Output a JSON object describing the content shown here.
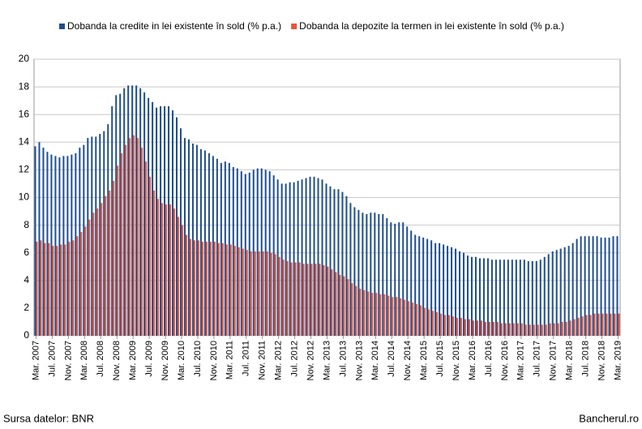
{
  "chart_data": {
    "type": "bar",
    "categories": [
      "Mar. 2007",
      null,
      null,
      null,
      "Jul. 2007",
      null,
      null,
      null,
      "Nov. 2007",
      null,
      null,
      null,
      "Mar. 2008",
      null,
      null,
      null,
      "Jul. 2008",
      null,
      null,
      null,
      "Nov. 2008",
      null,
      null,
      null,
      "Mar. 2009",
      null,
      null,
      null,
      "Jul. 2009",
      null,
      null,
      null,
      "Nov. 2009",
      null,
      null,
      null,
      "Mar. 2010",
      null,
      null,
      null,
      "Jul. 2010",
      null,
      null,
      null,
      "Nov. 2010",
      null,
      null,
      null,
      "Mar. 2011",
      null,
      null,
      null,
      "Jul. 2011",
      null,
      null,
      null,
      "Nov. 2011",
      null,
      null,
      null,
      "Mar. 2012",
      null,
      null,
      null,
      "Jul. 2012",
      null,
      null,
      null,
      "Nov. 2012",
      null,
      null,
      null,
      "Mar. 2013",
      null,
      null,
      null,
      "Jul. 2013",
      null,
      null,
      null,
      "Nov. 2013",
      null,
      null,
      null,
      "Mar. 2014",
      null,
      null,
      null,
      "Jul. 2014",
      null,
      null,
      null,
      "Nov. 2014",
      null,
      null,
      null,
      "Mar. 2015",
      null,
      null,
      null,
      "Jul. 2015",
      null,
      null,
      null,
      "Nov. 2015",
      null,
      null,
      null,
      "Mar. 2016",
      null,
      null,
      null,
      "Jul. 2016",
      null,
      null,
      null,
      "Nov. 2016",
      null,
      null,
      null,
      "Mar. 2017",
      null,
      null,
      null,
      "Jul. 2017",
      null,
      null,
      null,
      "Nov. 2017",
      null,
      null,
      null,
      "Mar. 2018",
      null,
      null,
      null,
      "Jul. 2018",
      null,
      null,
      null,
      "Nov. 2018",
      null,
      null,
      null,
      "Mar. 2019"
    ],
    "series": [
      {
        "name": "Dobanda la credite in lei existente în sold (% p.a.)",
        "color": "#1f4e8c",
        "values": [
          13.7,
          14.0,
          13.6,
          13.3,
          13.1,
          13.0,
          12.9,
          13.0,
          13.0,
          13.1,
          13.2,
          13.6,
          13.8,
          14.3,
          14.4,
          14.4,
          14.6,
          14.8,
          15.3,
          16.6,
          17.4,
          17.5,
          17.9,
          18.1,
          18.1,
          18.1,
          17.9,
          17.6,
          17.2,
          16.9,
          16.5,
          16.6,
          16.6,
          16.6,
          16.3,
          15.8,
          15.0,
          14.3,
          14.2,
          13.9,
          13.8,
          13.5,
          13.4,
          13.2,
          13.0,
          12.8,
          12.5,
          12.6,
          12.5,
          12.2,
          12.1,
          11.9,
          11.7,
          11.8,
          12.0,
          12.1,
          12.1,
          12.0,
          11.9,
          11.6,
          11.3,
          11.0,
          11.0,
          11.1,
          11.1,
          11.2,
          11.3,
          11.4,
          11.5,
          11.5,
          11.4,
          11.3,
          11.0,
          10.8,
          10.6,
          10.6,
          10.4,
          10.1,
          9.6,
          9.3,
          9.1,
          8.9,
          8.8,
          8.9,
          8.9,
          8.8,
          8.8,
          8.5,
          8.2,
          8.1,
          8.2,
          8.2,
          7.9,
          7.6,
          7.3,
          7.2,
          7.1,
          7.0,
          6.9,
          6.7,
          6.7,
          6.6,
          6.5,
          6.4,
          6.3,
          6.1,
          6.0,
          5.8,
          5.7,
          5.7,
          5.6,
          5.6,
          5.6,
          5.5,
          5.5,
          5.5,
          5.5,
          5.5,
          5.5,
          5.5,
          5.5,
          5.5,
          5.4,
          5.4,
          5.4,
          5.5,
          5.7,
          5.9,
          6.1,
          6.2,
          6.3,
          6.4,
          6.5,
          6.7,
          7.0,
          7.2,
          7.2,
          7.2,
          7.2,
          7.2,
          7.1,
          7.1,
          7.1,
          7.2,
          7.2
        ]
      },
      {
        "name": "Dobanda  la depozite la termen in lei existente în sold (% p.a.)",
        "color": "#e8553a",
        "values": [
          6.8,
          6.9,
          6.7,
          6.7,
          6.5,
          6.5,
          6.6,
          6.6,
          6.8,
          6.9,
          7.2,
          7.5,
          7.9,
          8.4,
          8.9,
          9.2,
          9.6,
          10.1,
          10.5,
          11.2,
          12.3,
          13.2,
          13.8,
          14.3,
          14.5,
          14.3,
          13.6,
          12.6,
          11.5,
          10.5,
          9.9,
          9.6,
          9.5,
          9.5,
          9.2,
          8.6,
          8.0,
          7.3,
          7.0,
          6.9,
          6.9,
          6.8,
          6.8,
          6.8,
          6.8,
          6.7,
          6.7,
          6.6,
          6.6,
          6.5,
          6.4,
          6.3,
          6.2,
          6.1,
          6.1,
          6.1,
          6.1,
          6.1,
          6.0,
          5.9,
          5.7,
          5.5,
          5.4,
          5.3,
          5.3,
          5.3,
          5.2,
          5.2,
          5.2,
          5.2,
          5.2,
          5.1,
          5.0,
          4.8,
          4.6,
          4.4,
          4.3,
          4.1,
          3.8,
          3.6,
          3.4,
          3.3,
          3.2,
          3.1,
          3.1,
          3.0,
          3.0,
          2.9,
          2.8,
          2.8,
          2.7,
          2.6,
          2.5,
          2.4,
          2.3,
          2.2,
          2.0,
          1.9,
          1.8,
          1.7,
          1.6,
          1.5,
          1.5,
          1.4,
          1.3,
          1.3,
          1.2,
          1.2,
          1.1,
          1.1,
          1.1,
          1.0,
          1.0,
          1.0,
          1.0,
          0.9,
          0.9,
          0.9,
          0.9,
          0.9,
          0.9,
          0.8,
          0.8,
          0.8,
          0.8,
          0.8,
          0.8,
          0.9,
          0.9,
          0.9,
          1.0,
          1.0,
          1.1,
          1.2,
          1.3,
          1.4,
          1.5,
          1.5,
          1.6,
          1.6,
          1.6,
          1.6,
          1.6,
          1.6,
          1.6
        ]
      }
    ],
    "ylim": [
      0,
      20
    ],
    "yticks": [
      0,
      2,
      4,
      6,
      8,
      10,
      12,
      14,
      16,
      18,
      20
    ],
    "grid": true,
    "legend": "top",
    "source": "Sursa datelor: BNR",
    "credit": "Bancherul.ro"
  }
}
